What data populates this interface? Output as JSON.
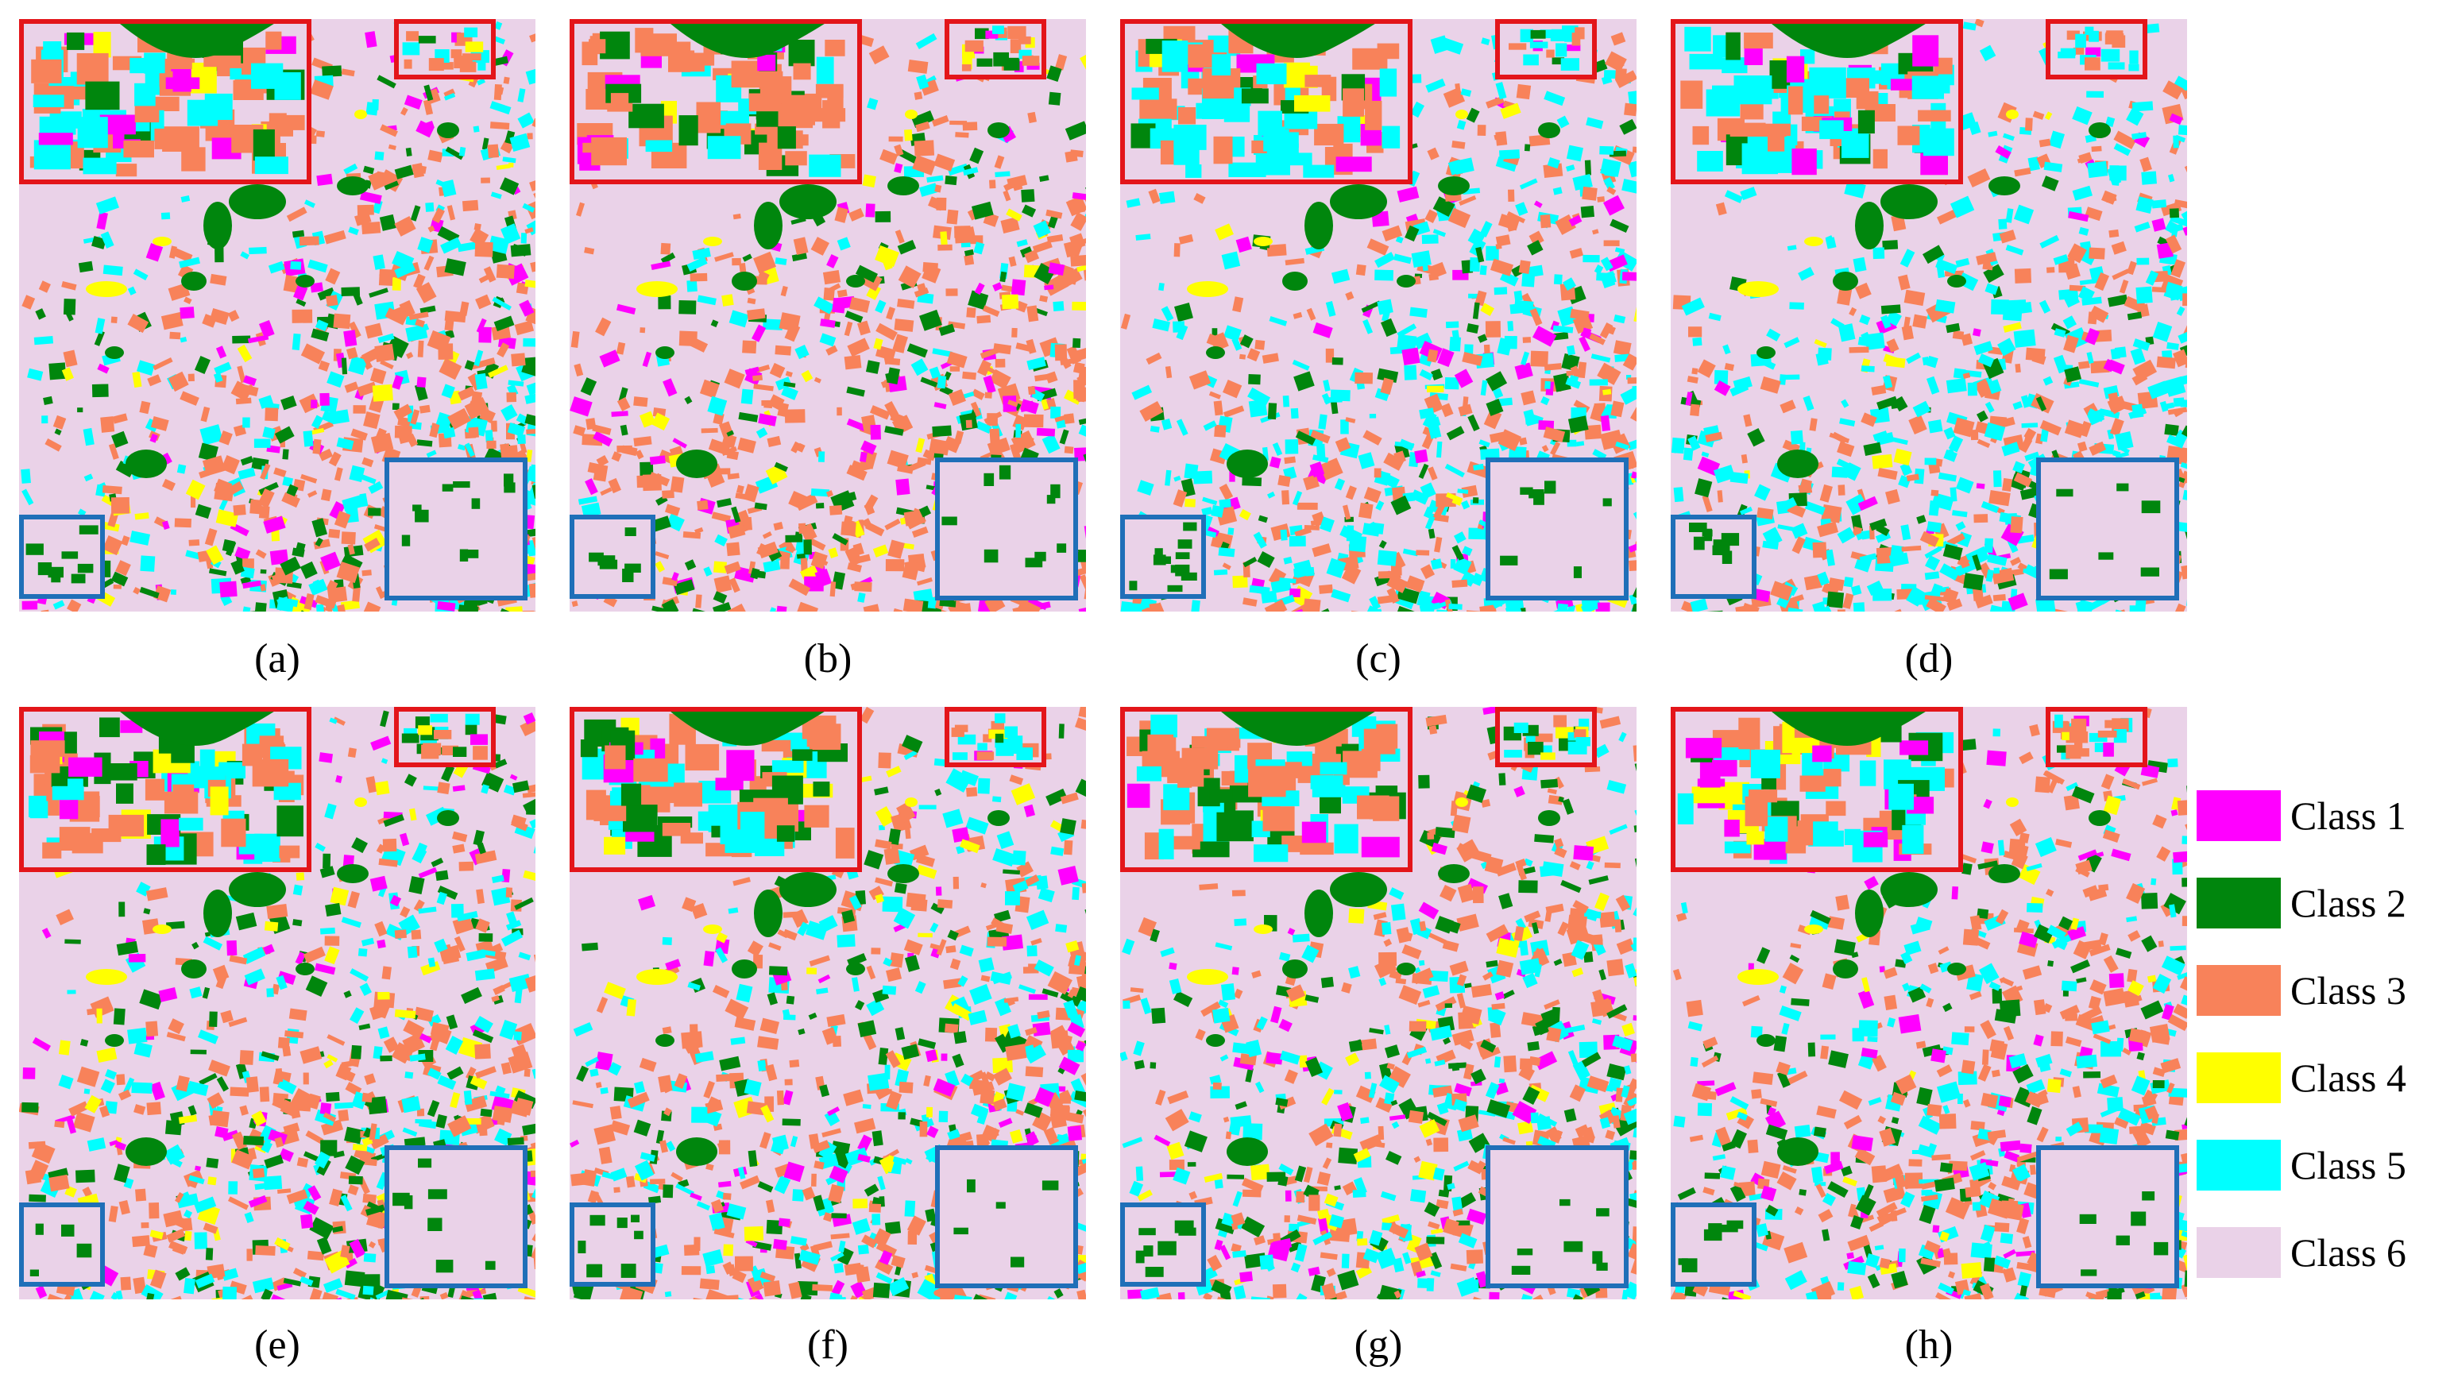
{
  "panels": [
    {
      "id": "a",
      "caption": "(a)",
      "variant": 0
    },
    {
      "id": "b",
      "caption": "(b)",
      "variant": 1
    },
    {
      "id": "c",
      "caption": "(c)",
      "variant": 2
    },
    {
      "id": "d",
      "caption": "(d)",
      "variant": 3
    },
    {
      "id": "e",
      "caption": "(e)",
      "variant": 4
    },
    {
      "id": "f",
      "caption": "(f)",
      "variant": 5
    },
    {
      "id": "g",
      "caption": "(g)",
      "variant": 6
    },
    {
      "id": "h",
      "caption": "(h)",
      "variant": 7
    }
  ],
  "legend": [
    {
      "label": "Class 1",
      "color": "#ff00ff"
    },
    {
      "label": "Class 2",
      "color": "#00860d"
    },
    {
      "label": "Class 3",
      "color": "#f8825a"
    },
    {
      "label": "Class 4",
      "color": "#ffff00"
    },
    {
      "label": "Class 5",
      "color": "#00ffff"
    },
    {
      "label": "Class 6",
      "color": "#ead2e8"
    }
  ],
  "inset_colors": {
    "zoom_top": "#e3151a",
    "zoom_bottom": "#1f6fb8"
  }
}
